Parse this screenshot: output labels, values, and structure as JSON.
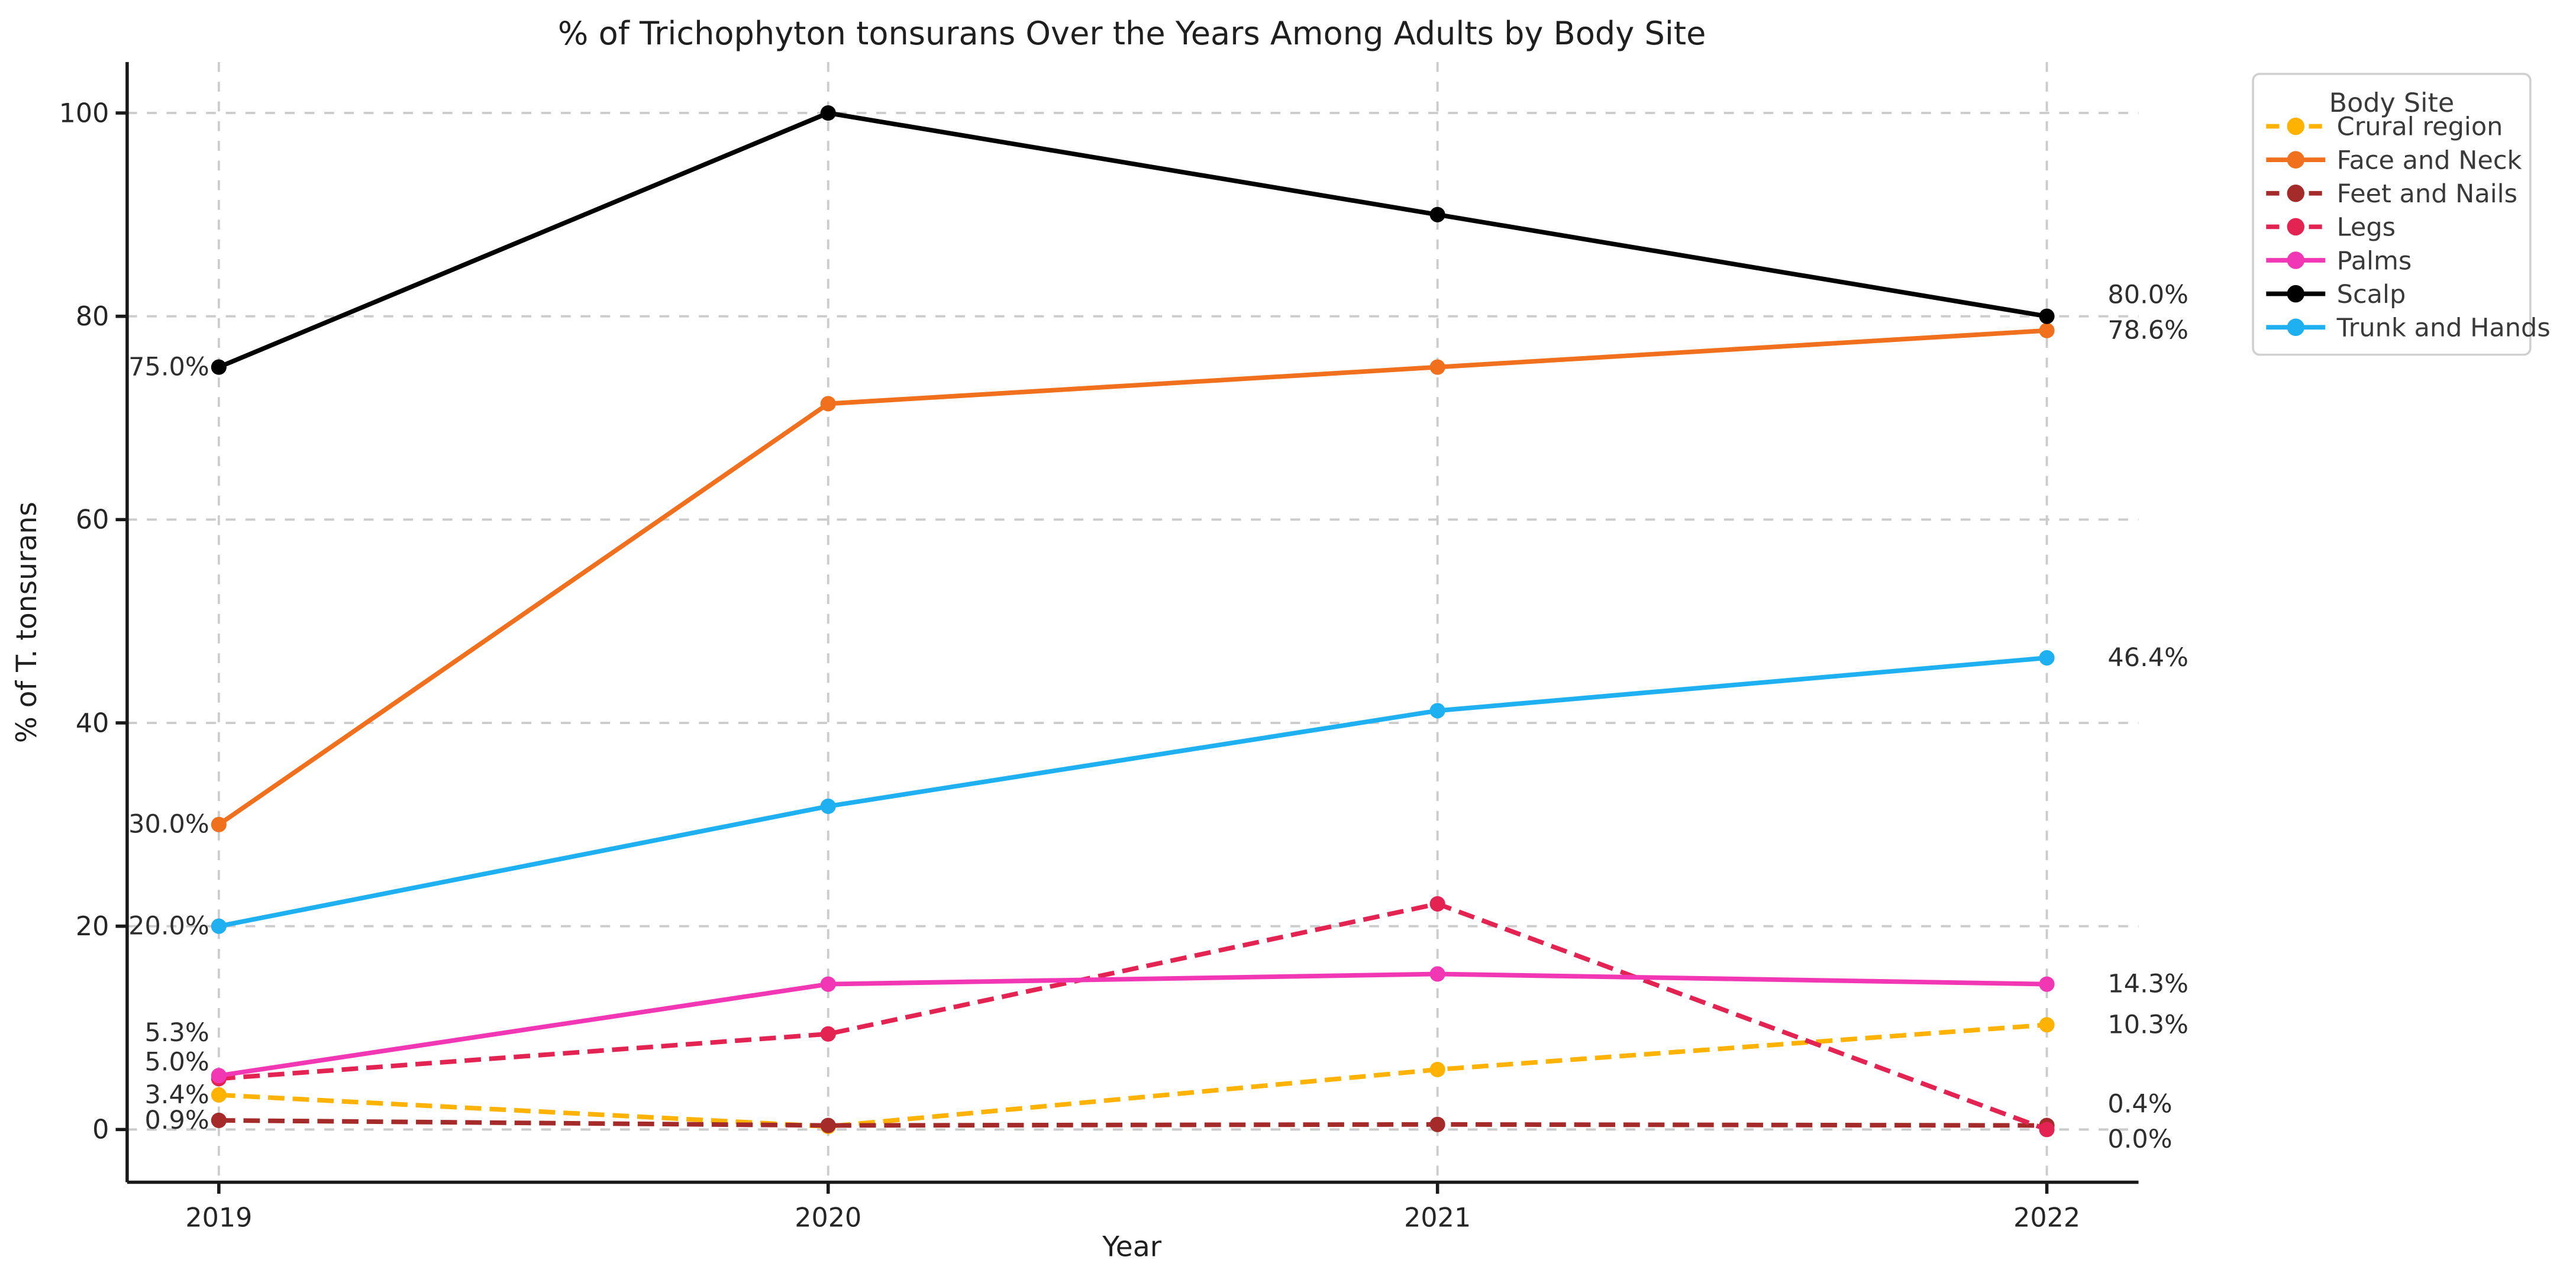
{
  "figure": {
    "background": "#ffffff",
    "grid_color": "#cccccc",
    "spine_color": "#1a1a1a",
    "text_color": "#262626"
  },
  "chart_data": {
    "type": "line",
    "title": "% of Trichophyton tonsurans Over the Years Among Adults by Body Site",
    "xlabel": "Year",
    "ylabel": "% of T. tonsurans",
    "categories": [
      "2019",
      "2020",
      "2021",
      "2022"
    ],
    "y_ticks": [
      0,
      20,
      40,
      60,
      80,
      100
    ],
    "ylim": [
      -5,
      105
    ],
    "grid": true,
    "legend_title": "Body Site",
    "legend_position": "outside upper right",
    "series": [
      {
        "name": "Crural region",
        "color": "#FFB200",
        "style": "dashed",
        "values": [
          3.4,
          0.3,
          5.9,
          10.3
        ],
        "first_label": "3.4%",
        "last_label": "10.3%",
        "first_dy": 0,
        "last_dy": 0
      },
      {
        "name": "Face and Neck",
        "color": "#F1701E",
        "style": "solid",
        "values": [
          30.0,
          71.4,
          75.0,
          78.6
        ],
        "first_label": "30.0%",
        "last_label": "78.6%",
        "first_dy": 0,
        "last_dy": 0
      },
      {
        "name": "Feet and Nails",
        "color": "#A52A2A",
        "style": "dashed",
        "values": [
          0.9,
          0.4,
          0.5,
          0.4
        ],
        "first_label": "0.9%",
        "last_label": "0.4%",
        "first_dy": 0,
        "last_dy": -13
      },
      {
        "name": "Legs",
        "color": "#E32452",
        "style": "dashed",
        "values": [
          5.0,
          9.4,
          22.2,
          0.0
        ],
        "first_label": "5.0%",
        "last_label": "0.0%",
        "first_dy": -10,
        "last_dy": 6
      },
      {
        "name": "Palms",
        "color": "#F237B4",
        "style": "solid",
        "values": [
          5.3,
          14.3,
          15.3,
          14.3
        ],
        "first_label": "5.3%",
        "last_label": "14.3%",
        "first_dy": -26,
        "last_dy": 0
      },
      {
        "name": "Scalp",
        "color": "#000000",
        "style": "solid",
        "values": [
          75.0,
          100.0,
          90.0,
          80.0
        ],
        "first_label": "75.0%",
        "last_label": "80.0%",
        "first_dy": 0,
        "last_dy": -13
      },
      {
        "name": "Trunk and Hands",
        "color": "#1FB0F2",
        "style": "solid",
        "values": [
          20.0,
          31.8,
          41.2,
          46.4
        ],
        "first_label": "20.0%",
        "last_label": "46.4%",
        "first_dy": 0,
        "last_dy": 0
      }
    ]
  }
}
